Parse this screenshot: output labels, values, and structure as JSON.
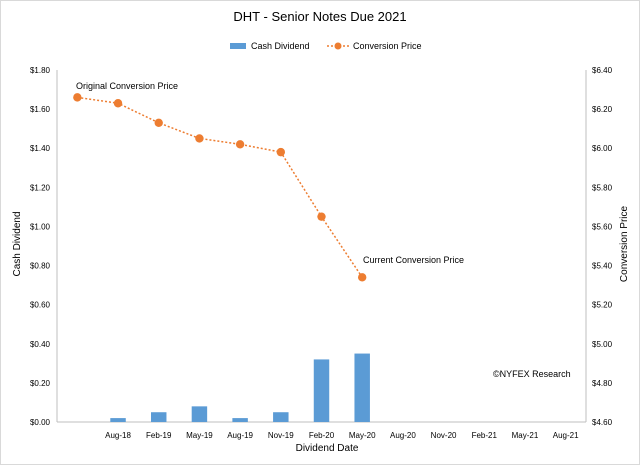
{
  "chart_data": {
    "type": "bar+line",
    "title": "DHT - Senior Notes Due 2021",
    "xlabel": "Dividend Date",
    "ylabel_left": "Cash Dividend",
    "ylabel_right": "Conversion Price",
    "categories": [
      "",
      "Aug-18",
      "Feb-19",
      "May-19",
      "Aug-19",
      "Nov-19",
      "Feb-20",
      "May-20",
      "Aug-20",
      "Nov-20",
      "Feb-21",
      "May-21",
      "Aug-21"
    ],
    "ylim_left": [
      0,
      1.8
    ],
    "ylim_right": [
      4.6,
      6.4
    ],
    "yticks_left": [
      "$0.00",
      "$0.20",
      "$0.40",
      "$0.60",
      "$0.80",
      "$1.00",
      "$1.20",
      "$1.40",
      "$1.60",
      "$1.80"
    ],
    "yticks_right": [
      "$4.60",
      "$4.80",
      "$5.00",
      "$5.20",
      "$5.40",
      "$5.60",
      "$5.80",
      "$6.00",
      "$6.20",
      "$6.40"
    ],
    "series": [
      {
        "name": "Cash Dividend",
        "kind": "bar",
        "axis": "left",
        "color": "#5b9bd5",
        "values": [
          null,
          0.02,
          0.05,
          0.08,
          0.02,
          0.05,
          0.32,
          0.35,
          null,
          null,
          null,
          null,
          null
        ]
      },
      {
        "name": "Conversion Price",
        "kind": "line",
        "axis": "right",
        "color": "#ed7d31",
        "style": "dotted with circle markers",
        "values": [
          6.26,
          6.23,
          6.13,
          6.05,
          6.02,
          5.98,
          5.65,
          5.34,
          null,
          null,
          null,
          null,
          null
        ]
      }
    ],
    "annotations": [
      {
        "text": "Original Conversion Price",
        "category_index": 0
      },
      {
        "text": "Current Conversion Price",
        "category_index": 7
      },
      {
        "text": "©NYFEX Research"
      }
    ],
    "legend_position": "top-center",
    "grid": false
  }
}
